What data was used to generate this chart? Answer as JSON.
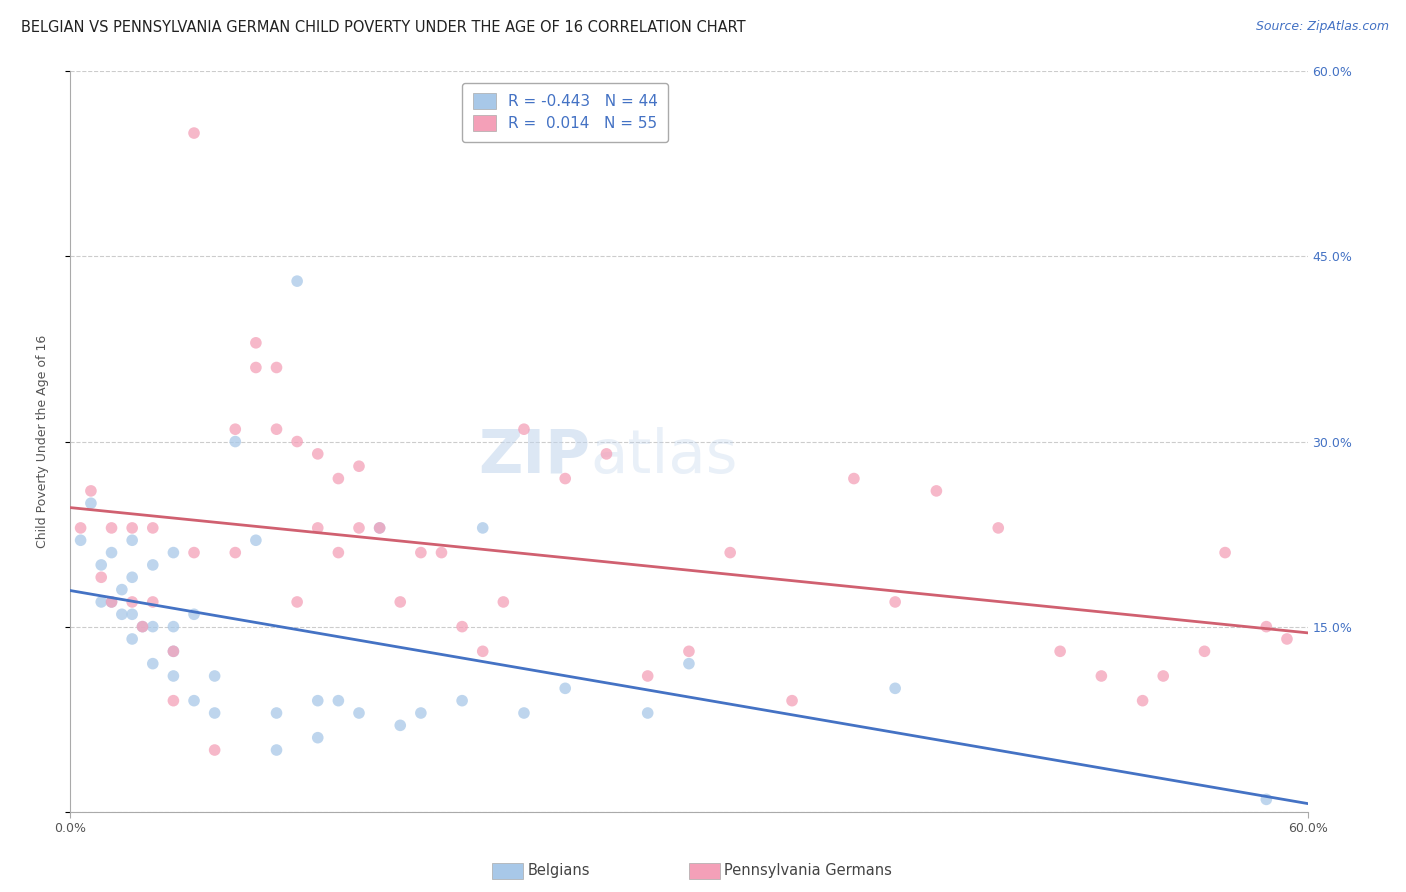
{
  "title": "BELGIAN VS PENNSYLVANIA GERMAN CHILD POVERTY UNDER THE AGE OF 16 CORRELATION CHART",
  "source": "Source: ZipAtlas.com",
  "ylabel": "Child Poverty Under the Age of 16",
  "x_range": [
    0.0,
    0.6
  ],
  "y_range": [
    0.0,
    0.6
  ],
  "belgian_R": -0.443,
  "belgian_N": 44,
  "pennger_R": 0.014,
  "pennger_N": 55,
  "legend_label_1": "Belgians",
  "legend_label_2": "Pennsylvania Germans",
  "belgian_color": "#a8c8e8",
  "pennger_color": "#f4a0b8",
  "belgian_line_color": "#4472c4",
  "pennger_line_color": "#d06070",
  "belgian_x": [
    0.005,
    0.01,
    0.015,
    0.015,
    0.02,
    0.02,
    0.025,
    0.025,
    0.03,
    0.03,
    0.03,
    0.03,
    0.035,
    0.04,
    0.04,
    0.04,
    0.05,
    0.05,
    0.05,
    0.05,
    0.06,
    0.06,
    0.07,
    0.07,
    0.08,
    0.09,
    0.1,
    0.1,
    0.11,
    0.12,
    0.12,
    0.13,
    0.14,
    0.15,
    0.16,
    0.17,
    0.19,
    0.2,
    0.22,
    0.24,
    0.28,
    0.3,
    0.4,
    0.58
  ],
  "belgian_y": [
    0.22,
    0.25,
    0.17,
    0.2,
    0.17,
    0.21,
    0.16,
    0.18,
    0.14,
    0.16,
    0.19,
    0.22,
    0.15,
    0.12,
    0.15,
    0.2,
    0.11,
    0.13,
    0.15,
    0.21,
    0.09,
    0.16,
    0.08,
    0.11,
    0.3,
    0.22,
    0.05,
    0.08,
    0.43,
    0.06,
    0.09,
    0.09,
    0.08,
    0.23,
    0.07,
    0.08,
    0.09,
    0.23,
    0.08,
    0.1,
    0.08,
    0.12,
    0.1,
    0.01
  ],
  "pennger_x": [
    0.005,
    0.01,
    0.015,
    0.02,
    0.02,
    0.03,
    0.03,
    0.035,
    0.04,
    0.04,
    0.05,
    0.05,
    0.06,
    0.06,
    0.07,
    0.08,
    0.08,
    0.09,
    0.09,
    0.1,
    0.1,
    0.11,
    0.11,
    0.12,
    0.12,
    0.13,
    0.13,
    0.14,
    0.14,
    0.15,
    0.16,
    0.17,
    0.18,
    0.19,
    0.2,
    0.21,
    0.22,
    0.24,
    0.26,
    0.28,
    0.3,
    0.32,
    0.35,
    0.38,
    0.4,
    0.42,
    0.45,
    0.48,
    0.5,
    0.52,
    0.53,
    0.55,
    0.56,
    0.58,
    0.59
  ],
  "pennger_y": [
    0.23,
    0.26,
    0.19,
    0.17,
    0.23,
    0.17,
    0.23,
    0.15,
    0.17,
    0.23,
    0.09,
    0.13,
    0.55,
    0.21,
    0.05,
    0.21,
    0.31,
    0.36,
    0.38,
    0.31,
    0.36,
    0.17,
    0.3,
    0.23,
    0.29,
    0.21,
    0.27,
    0.23,
    0.28,
    0.23,
    0.17,
    0.21,
    0.21,
    0.15,
    0.13,
    0.17,
    0.31,
    0.27,
    0.29,
    0.11,
    0.13,
    0.21,
    0.09,
    0.27,
    0.17,
    0.26,
    0.23,
    0.13,
    0.11,
    0.09,
    0.11,
    0.13,
    0.21,
    0.15,
    0.14
  ],
  "background_color": "#ffffff",
  "grid_color": "#cccccc",
  "title_fontsize": 10.5,
  "ylabel_fontsize": 9,
  "tick_fontsize": 9,
  "legend_fontsize": 11,
  "source_fontsize": 9,
  "marker_size": 70,
  "marker_alpha": 0.75
}
